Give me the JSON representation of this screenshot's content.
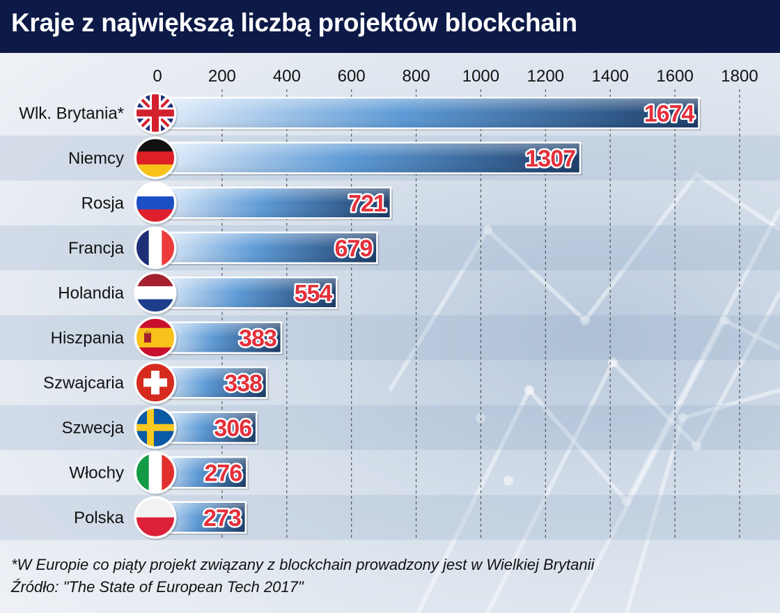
{
  "title": "Kraje z największą liczbą projektów blockchain",
  "footnote": "*W Europie co piąty projekt związany z blockchain prowadzony jest w Wielkiej Brytanii",
  "source": "Źródło: \"The State of European Tech 2017\"",
  "colors": {
    "title_bg": "#0d1a47",
    "bar_light": "#dcebfa",
    "bar_dark": "#1b3c68",
    "value_fill": "#e52f3a",
    "value_stroke": "#ffffff"
  },
  "chart_data": {
    "type": "bar",
    "orientation": "horizontal",
    "categories": [
      "Wlk. Brytania*",
      "Niemcy",
      "Rosja",
      "Francja",
      "Holandia",
      "Hiszpania",
      "Szwajcaria",
      "Szwecja",
      "Włochy",
      "Polska"
    ],
    "flags": [
      "uk-flag",
      "germany-flag",
      "russia-flag",
      "france-flag",
      "netherlands-flag",
      "spain-flag",
      "switzerland-flag",
      "sweden-flag",
      "italy-flag",
      "poland-flag"
    ],
    "values": [
      1674,
      1307,
      721,
      679,
      554,
      383,
      338,
      306,
      276,
      273
    ],
    "value_labels": [
      "1674",
      "1307",
      "721",
      "679",
      "554",
      "383",
      "338",
      "306",
      "276",
      "273"
    ],
    "xlim": [
      0,
      1800
    ],
    "ticks": [
      0,
      200,
      400,
      600,
      800,
      1000,
      1200,
      1400,
      1600,
      1800
    ],
    "tick_labels": [
      "0",
      "200",
      "400",
      "600",
      "800",
      "1000",
      "1200",
      "1400",
      "1600",
      "1800"
    ],
    "grid": "vertical dashed",
    "axis_position": "top"
  }
}
